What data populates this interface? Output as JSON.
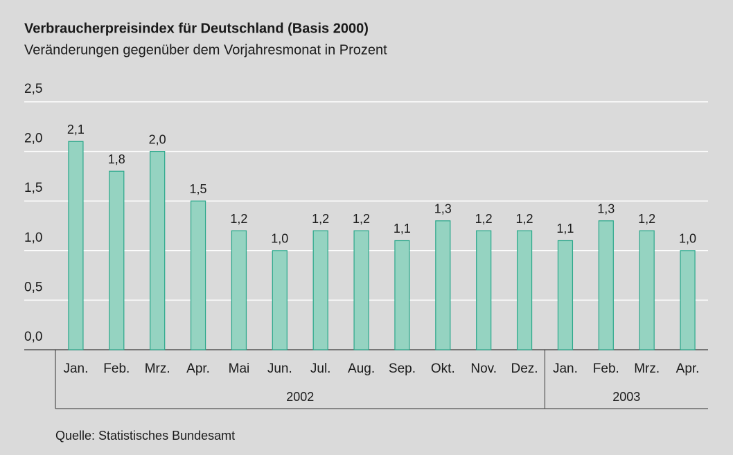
{
  "chart_data": {
    "type": "bar",
    "title": "Verbraucherpreisindex für Deutschland (Basis 2000)",
    "subtitle": "Veränderungen gegenüber dem Vorjahresmonat in Prozent",
    "categories": [
      "Jan.",
      "Feb.",
      "Mrz.",
      "Apr.",
      "Mai",
      "Jun.",
      "Jul.",
      "Aug.",
      "Sep.",
      "Okt.",
      "Nov.",
      "Dez.",
      "Jan.",
      "Feb.",
      "Mrz.",
      "Apr."
    ],
    "values": [
      2.1,
      1.8,
      2.0,
      1.5,
      1.2,
      1.0,
      1.2,
      1.2,
      1.1,
      1.3,
      1.2,
      1.2,
      1.1,
      1.3,
      1.2,
      1.0
    ],
    "value_labels": [
      "2,1",
      "1,8",
      "2,0",
      "1,5",
      "1,2",
      "1,0",
      "1,2",
      "1,2",
      "1,1",
      "1,3",
      "1,2",
      "1,2",
      "1,1",
      "1,3",
      "1,2",
      "1,0"
    ],
    "groups": [
      {
        "label": "2002",
        "count": 12
      },
      {
        "label": "2003",
        "count": 4
      }
    ],
    "color": "#95d3c1",
    "edge_color": "#2ba78b",
    "ylim": [
      0,
      2.5
    ],
    "yticks": [
      {
        "value": 0,
        "label": "0,0"
      },
      {
        "value": 0.5,
        "label": "0,5"
      },
      {
        "value": 1,
        "label": "1,0"
      },
      {
        "value": 1.5,
        "label": "1,5"
      },
      {
        "value": 2,
        "label": "2,0"
      },
      {
        "value": 2.5,
        "label": "2,5"
      }
    ],
    "grid": true,
    "source": "Quelle: Statistisches Bundesamt"
  }
}
